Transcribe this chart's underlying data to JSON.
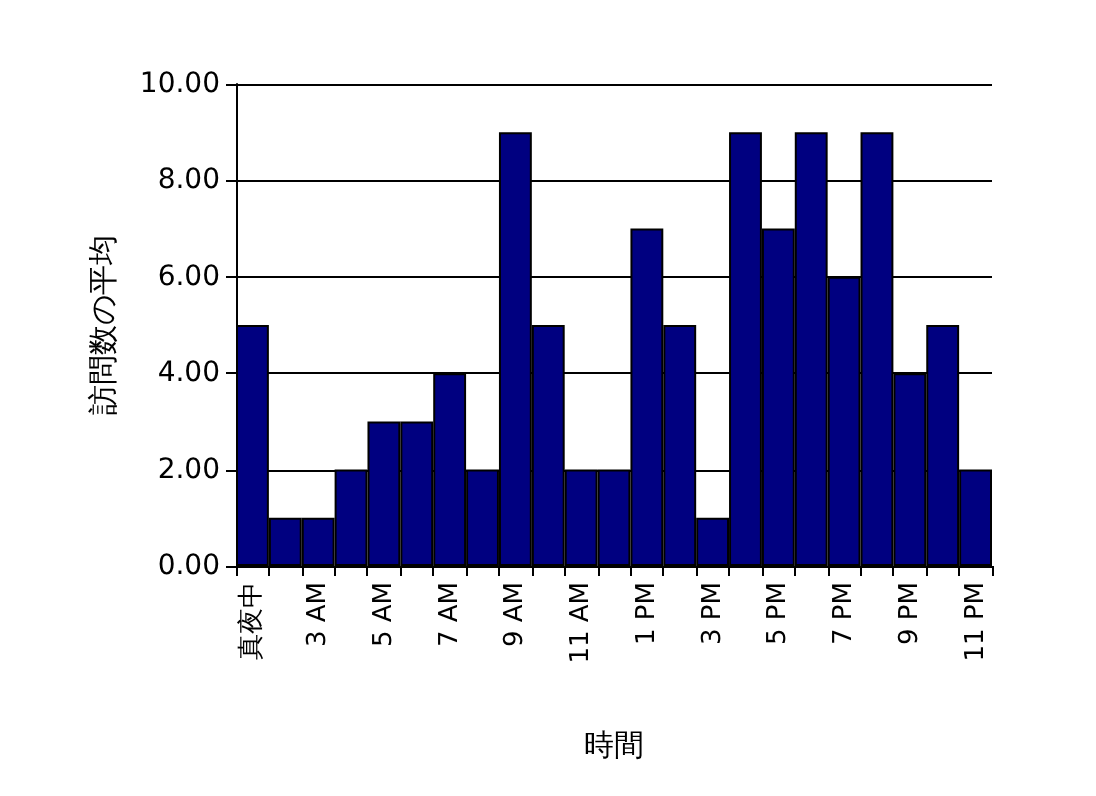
{
  "chart_data": {
    "type": "bar",
    "xlabel": "時間",
    "ylabel": "訪問数の平均",
    "categories": [
      "真夜中",
      null,
      "3 AM",
      null,
      "5 AM",
      null,
      "7 AM",
      null,
      "9 AM",
      null,
      "11 AM",
      null,
      "1 PM",
      null,
      "3 PM",
      null,
      "5 PM",
      null,
      "7 PM",
      null,
      "9 PM",
      null,
      "11 PM"
    ],
    "values": [
      5,
      1,
      1,
      2,
      3,
      3,
      4,
      2,
      9,
      5,
      2,
      2,
      7,
      5,
      1,
      9,
      7,
      9,
      6,
      9,
      4,
      5,
      2
    ],
    "color": "#000080",
    "ylim": [
      0,
      10
    ],
    "yticks": [
      {
        "value": 0,
        "label": "0.00"
      },
      {
        "value": 2,
        "label": "2.00"
      },
      {
        "value": 4,
        "label": "4.00"
      },
      {
        "value": 6,
        "label": "6.00"
      },
      {
        "value": 8,
        "label": "8.00"
      },
      {
        "value": 10,
        "label": "10.00"
      }
    ],
    "grid": "y"
  }
}
